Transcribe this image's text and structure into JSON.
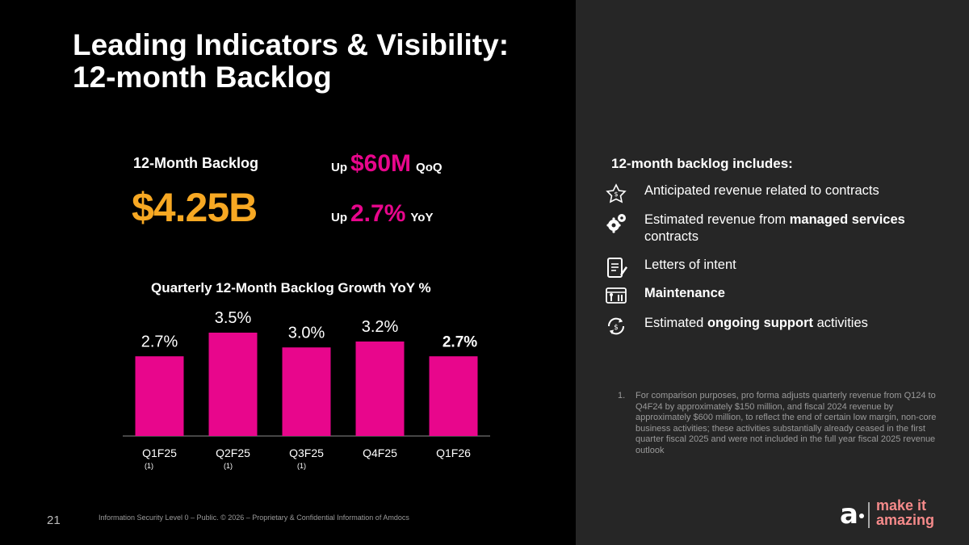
{
  "title": {
    "line1": "Leading Indicators & Visibility:",
    "line2": "12-month Backlog"
  },
  "kpi": {
    "label": "12-Month Backlog",
    "value": "$4.25B",
    "qoq": {
      "prefix": "Up",
      "amount": "$60M",
      "suffix": "QoQ"
    },
    "yoy": {
      "prefix": "Up",
      "amount": "2.7%",
      "suffix": "YoY"
    }
  },
  "chart_data": {
    "type": "bar",
    "title": "Quarterly 12-Month Backlog Growth YoY %",
    "categories": [
      "Q1F25",
      "Q2F25",
      "Q3F25",
      "Q4F25",
      "Q1F26"
    ],
    "values": [
      2.7,
      3.5,
      3.0,
      3.2,
      2.7
    ],
    "value_labels": [
      "2.7%",
      "3.5%",
      "3.0%",
      "3.2%",
      "2.7%"
    ],
    "footnote_marks": [
      "(1)",
      "(1)",
      "(1)",
      "",
      ""
    ],
    "bar_color": "#E8068C",
    "ylim": [
      0,
      3.5
    ],
    "xlabel": "",
    "ylabel": ""
  },
  "includes": {
    "title": "12-month backlog includes",
    "title_suffix": ":",
    "items": [
      {
        "icon": "contract-star-icon",
        "parts": [
          {
            "text": "Anticipated revenue related to contracts",
            "bold": false
          }
        ]
      },
      {
        "icon": "gears-icon",
        "parts": [
          {
            "text": "Estimated revenue from ",
            "bold": false
          },
          {
            "text": "managed services",
            "bold": true
          },
          {
            "text": " contracts",
            "bold": false
          }
        ]
      },
      {
        "icon": "document-pen-icon",
        "parts": [
          {
            "text": "Letters of intent",
            "bold": false
          }
        ]
      },
      {
        "icon": "maintenance-tools-icon",
        "parts": [
          {
            "text": "Maintenance",
            "bold": true
          }
        ]
      },
      {
        "icon": "support-cycle-icon",
        "parts": [
          {
            "text": "Estimated ",
            "bold": false
          },
          {
            "text": "ongoing support",
            "bold": true
          },
          {
            "text": " activities",
            "bold": false
          }
        ]
      }
    ]
  },
  "footnote": {
    "number": "1.",
    "text": "For comparison purposes, pro forma adjusts quarterly revenue from Q124 to Q4F24 by approximately $150 million, and fiscal 2024 revenue by approximately $600 million, to reflect the end of certain low margin, non-core business activities; these activities substantially already ceased in the first quarter fiscal 2025 and were not included in the full year fiscal 2025 revenue outlook"
  },
  "footer": {
    "slide_number": "21",
    "classification": "Information Security Level 0 – Public. © 2026 – Proprietary & Confidential Information of Amdocs"
  },
  "brand": {
    "mark": "a",
    "tagline_1": "make it",
    "tagline_2": "amazing"
  },
  "colors": {
    "accent_pink": "#E8068C",
    "accent_orange": "#F7A823",
    "right_panel": "#262626"
  }
}
